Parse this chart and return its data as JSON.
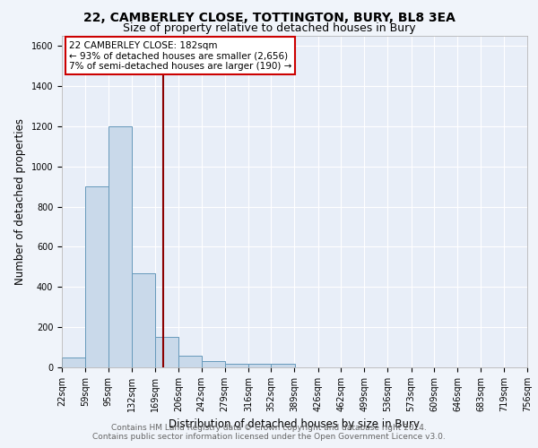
{
  "title1": "22, CAMBERLEY CLOSE, TOTTINGTON, BURY, BL8 3EA",
  "title2": "Size of property relative to detached houses in Bury",
  "xlabel": "Distribution of detached houses by size in Bury",
  "ylabel": "Number of detached properties",
  "bar_edges": [
    22,
    59,
    95,
    132,
    169,
    206,
    242,
    279,
    316,
    352,
    389,
    426,
    462,
    499,
    536,
    573,
    609,
    646,
    683,
    719,
    756
  ],
  "bar_heights": [
    50,
    900,
    1200,
    470,
    150,
    60,
    30,
    20,
    20,
    20,
    0,
    0,
    0,
    0,
    0,
    0,
    0,
    0,
    0,
    0
  ],
  "bar_color": "#c9d9ea",
  "bar_edgecolor": "#6699bb",
  "vline_x": 182,
  "vline_color": "#8b0000",
  "annotation_text": "22 CAMBERLEY CLOSE: 182sqm\n← 93% of detached houses are smaller (2,656)\n7% of semi-detached houses are larger (190) →",
  "annotation_box_edgecolor": "#cc0000",
  "annotation_box_facecolor": "#ffffff",
  "ylim": [
    0,
    1650
  ],
  "yticks": [
    0,
    200,
    400,
    600,
    800,
    1000,
    1200,
    1400,
    1600
  ],
  "tick_labels": [
    "22sqm",
    "59sqm",
    "95sqm",
    "132sqm",
    "169sqm",
    "206sqm",
    "242sqm",
    "279sqm",
    "316sqm",
    "352sqm",
    "389sqm",
    "426sqm",
    "462sqm",
    "499sqm",
    "536sqm",
    "573sqm",
    "609sqm",
    "646sqm",
    "683sqm",
    "719sqm",
    "756sqm"
  ],
  "footer1": "Contains HM Land Registry data © Crown copyright and database right 2024.",
  "footer2": "Contains public sector information licensed under the Open Government Licence v3.0.",
  "bg_color": "#f0f4fa",
  "plot_bg_color": "#e8eef8",
  "grid_color": "#ffffff",
  "title1_fontsize": 10,
  "title2_fontsize": 9,
  "axis_label_fontsize": 8.5,
  "tick_fontsize": 7,
  "footer_fontsize": 6.5,
  "annotation_fontsize": 7.5
}
